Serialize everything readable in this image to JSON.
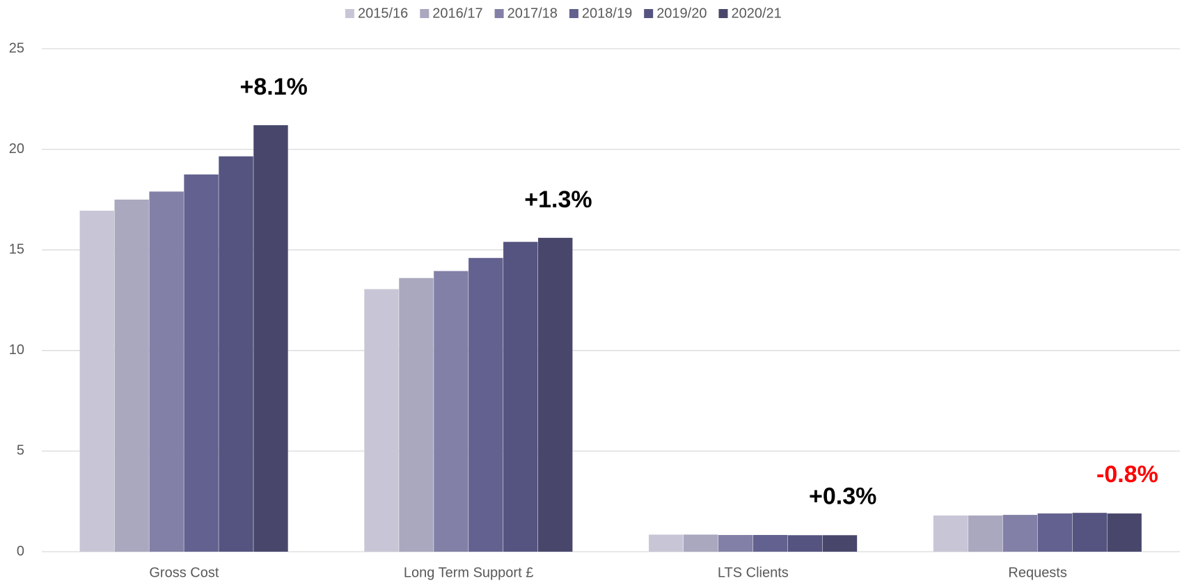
{
  "chart_data": {
    "type": "bar",
    "categories": [
      "Gross Cost",
      "Long Term Support £",
      "LTS Clients",
      "Requests"
    ],
    "series": [
      {
        "name": "2015/16",
        "color": "#c8c6d6",
        "values": [
          16.95,
          13.05,
          0.85,
          1.8
        ]
      },
      {
        "name": "2016/17",
        "color": "#a9a8bf",
        "values": [
          17.5,
          13.6,
          0.85,
          1.8
        ]
      },
      {
        "name": "2017/18",
        "color": "#8280a6",
        "values": [
          17.9,
          13.95,
          0.83,
          1.83
        ]
      },
      {
        "name": "2018/19",
        "color": "#62618f",
        "values": [
          18.75,
          14.6,
          0.83,
          1.9
        ]
      },
      {
        "name": "2019/20",
        "color": "#555480",
        "values": [
          19.65,
          15.4,
          0.82,
          1.93
        ]
      },
      {
        "name": "2020/21",
        "color": "#48476b",
        "values": [
          21.2,
          15.6,
          0.82,
          1.9
        ]
      }
    ],
    "annotations": [
      "+8.1%",
      "+1.3%",
      "+0.3%",
      "-0.8%"
    ],
    "annotation_colors": [
      "#000000",
      "#000000",
      "#000000",
      "#ff0000"
    ],
    "ylim": [
      0,
      25
    ],
    "yticks": [
      0,
      5,
      10,
      15,
      20,
      25
    ],
    "grid": true,
    "legend": "top"
  }
}
